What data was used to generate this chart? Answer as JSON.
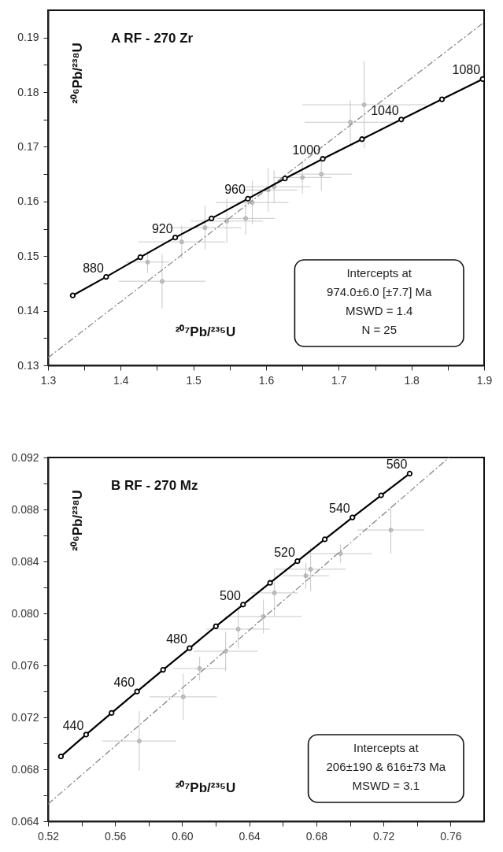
{
  "chart_data": [
    {
      "type": "line",
      "title": "A    RF -  270 Zr",
      "xlabel": "²⁰⁷Pb/²³⁵U",
      "ylabel": "²⁰⁶Pb/²³⁸U",
      "xlim": [
        1.3,
        1.9
      ],
      "ylim": [
        0.13,
        0.195
      ],
      "xticks": [
        1.3,
        {
          "value": 1.35,
          "label": null
        },
        1.4,
        {
          "value": 1.45,
          "label": null
        },
        1.5,
        {
          "value": 1.55,
          "label": null
        },
        1.6,
        {
          "value": 1.65,
          "label": null
        },
        1.7,
        {
          "value": 1.75,
          "label": null
        },
        1.8,
        {
          "value": 1.85,
          "label": null
        },
        1.9
      ],
      "yticks": [
        0.13,
        {
          "value": 0.135,
          "label": null
        },
        0.14,
        {
          "value": 0.145,
          "label": null
        },
        0.15,
        {
          "value": 0.155,
          "label": null
        },
        0.16,
        {
          "value": 0.165,
          "label": null
        },
        0.17,
        {
          "value": 0.175,
          "label": null
        },
        0.18,
        {
          "value": 0.185,
          "label": null
        },
        0.19
      ],
      "series": [
        {
          "type": "scatter",
          "color": "#c8c8c8",
          "marker": "circle",
          "x": [
            1.457,
            1.484,
            1.735,
            1.716,
            1.676,
            1.581,
            1.603,
            1.546,
            1.572,
            1.516,
            1.611,
            1.65,
            1.437
          ],
          "values": [
            0.1454,
            0.1526,
            0.1777,
            0.1745,
            0.165,
            0.1598,
            0.1621,
            0.1564,
            0.1569,
            0.1552,
            0.1627,
            0.1644,
            0.1489
          ],
          "xerrors": [
            0.06,
            0.06,
            0.085,
            0.063,
            0.042,
            0.05,
            0.04,
            0.05,
            0.04,
            0.05,
            0.05,
            0.04,
            0.03
          ],
          "errors": [
            0.005,
            0.003,
            0.008,
            0.004,
            0.003,
            0.004,
            0.004,
            0.004,
            0.003,
            0.004,
            0.003,
            0.003,
            0.002
          ]
        },
        {
          "type": "line",
          "color": "#808080",
          "line_style": "dashed",
          "marker": "none",
          "x": [
            1.3,
            1.9
          ],
          "values": [
            0.1314,
            0.1928
          ]
        },
        {
          "type": "line",
          "color": "#000000",
          "marker": "circle",
          "x": [
            1.334,
            1.38,
            1.427,
            1.475,
            1.525,
            1.575,
            1.626,
            1.678,
            1.732,
            1.786,
            1.842,
            1.898
          ],
          "values": [
            0.1428,
            0.1462,
            0.1498,
            0.1534,
            0.1569,
            0.1605,
            0.1642,
            0.1678,
            0.1714,
            0.175,
            0.1787,
            0.1824
          ]
        }
      ],
      "annotations": [
        {
          "text": "880",
          "x": 1.38,
          "y": 0.1462
        },
        {
          "text": "920",
          "x": 1.475,
          "y": 0.1534
        },
        {
          "text": "960",
          "x": 1.575,
          "y": 0.1605
        },
        {
          "text": "1000",
          "x": 1.678,
          "y": 0.1678
        },
        {
          "text": "1040",
          "x": 1.786,
          "y": 0.175
        },
        {
          "text": "1080",
          "x": 1.898,
          "y": 0.1824
        },
        "Intercepts at",
        "974.0±6.0  [±7.7]  Ma",
        "MSWD = 1.4",
        "N = 25"
      ]
    },
    {
      "type": "line",
      "title": "B    RF -  270 Mz",
      "xlabel": "²⁰⁷Pb/²³⁵U",
      "ylabel": "²⁰⁶Pb/²³⁸U",
      "xlim": [
        0.52,
        0.78
      ],
      "ylim": [
        0.064,
        0.092
      ],
      "xticks": [
        0.52,
        {
          "value": 0.54,
          "label": null
        },
        0.56,
        {
          "value": 0.58,
          "label": null
        },
        {
          "value": 0.6,
          "label": "0.60"
        },
        {
          "value": 0.62,
          "label": null
        },
        0.64,
        {
          "value": 0.66,
          "label": null
        },
        0.68,
        {
          "value": 0.7,
          "label": null
        },
        0.72,
        {
          "value": 0.74,
          "label": null
        },
        0.76
      ],
      "yticks": [
        0.064,
        {
          "value": 0.066,
          "label": null
        },
        0.068,
        {
          "value": 0.07,
          "label": null
        },
        0.072,
        {
          "value": 0.074,
          "label": null
        },
        0.076,
        {
          "value": 0.078,
          "label": null
        },
        {
          "value": 0.08,
          "label": "0.080"
        },
        {
          "value": 0.082,
          "label": null
        },
        0.084,
        {
          "value": 0.086,
          "label": null
        },
        0.088,
        {
          "value": 0.09,
          "label": null
        },
        0.092
      ],
      "series": [
        {
          "type": "scatter",
          "color": "#c8c8c8",
          "marker": "circle",
          "x": [
            0.5744,
            0.6006,
            0.6104,
            0.6259,
            0.6334,
            0.6484,
            0.655,
            0.6766,
            0.6944,
            0.7244,
            0.6737
          ],
          "values": [
            0.07018,
            0.07358,
            0.07576,
            0.07709,
            0.07879,
            0.07976,
            0.08158,
            0.0834,
            0.0846,
            0.08642,
            0.0829
          ],
          "xerrors": [
            0.022,
            0.02,
            0.016,
            0.019,
            0.019,
            0.023,
            0.014,
            0.021,
            0.019,
            0.02,
            0.014
          ],
          "errors": [
            0.0023,
            0.0018,
            0.0009,
            0.0015,
            0.0015,
            0.0013,
            0.0018,
            0.0017,
            0.0007,
            0.0018,
            0.001
          ]
        },
        {
          "type": "line",
          "color": "#808080",
          "line_style": "dashed",
          "marker": "none",
          "x": [
            0.52,
            0.7591
          ],
          "values": [
            0.06533,
            0.092
          ]
        },
        {
          "type": "line",
          "color": "#000000",
          "marker": "circle",
          "x": [
            0.5277,
            0.5427,
            0.5579,
            0.5731,
            0.5886,
            0.6044,
            0.6201,
            0.6363,
            0.6524,
            0.6687,
            0.685,
            0.7015,
            0.7186,
            0.7356
          ],
          "values": [
            0.06899,
            0.07067,
            0.07234,
            0.07399,
            0.07566,
            0.07733,
            0.07901,
            0.08068,
            0.08235,
            0.08402,
            0.0857,
            0.08739,
            0.08909,
            0.09076
          ]
        }
      ],
      "annotations": [
        {
          "text": "440",
          "x": 0.5427,
          "y": 0.07067
        },
        {
          "text": "460",
          "x": 0.5731,
          "y": 0.07399
        },
        {
          "text": "480",
          "x": 0.6044,
          "y": 0.07733
        },
        {
          "text": "500",
          "x": 0.6363,
          "y": 0.08068
        },
        {
          "text": "520",
          "x": 0.6687,
          "y": 0.08402
        },
        {
          "text": "540",
          "x": 0.7015,
          "y": 0.08739
        },
        {
          "text": "560",
          "x": 0.7356,
          "y": 0.09076
        },
        "Intercepts at",
        "206±190 & 616±73 Ma",
        "MSWD = 3.1"
      ]
    }
  ]
}
